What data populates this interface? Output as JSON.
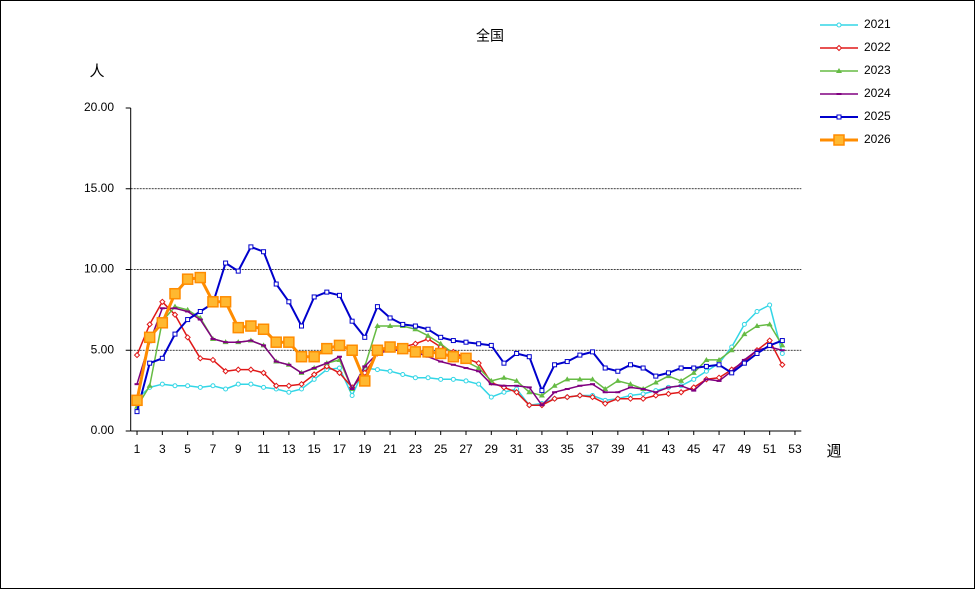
{
  "chart_data": {
    "type": "line",
    "title": "全国",
    "y_label": "人",
    "x_label": "週",
    "x": [
      1,
      2,
      3,
      4,
      5,
      6,
      7,
      8,
      9,
      10,
      11,
      12,
      13,
      14,
      15,
      16,
      17,
      18,
      19,
      20,
      21,
      22,
      23,
      24,
      25,
      26,
      27,
      28,
      29,
      30,
      31,
      32,
      33,
      34,
      35,
      36,
      37,
      38,
      39,
      40,
      41,
      42,
      43,
      44,
      45,
      46,
      47,
      48,
      49,
      50,
      51,
      52
    ],
    "xlim": [
      0.5,
      53.5
    ],
    "xticks": [
      1,
      3,
      5,
      7,
      9,
      11,
      13,
      15,
      17,
      19,
      21,
      23,
      25,
      27,
      29,
      31,
      33,
      35,
      37,
      39,
      41,
      43,
      45,
      47,
      49,
      51,
      53
    ],
    "ylim": [
      0,
      20
    ],
    "yticks": [
      {
        "value": 0,
        "label": "0.00"
      },
      {
        "value": 5,
        "label": "5.00"
      },
      {
        "value": 10,
        "label": "10.00"
      },
      {
        "value": 15,
        "label": "15.00"
      },
      {
        "value": 20,
        "label": "20.00"
      }
    ],
    "grid": true,
    "legend": "right",
    "series": [
      {
        "name": "2021",
        "color": "#33d6e6",
        "marker": "circle",
        "width": 1.5,
        "values": [
          2.0,
          2.7,
          2.9,
          2.8,
          2.8,
          2.7,
          2.8,
          2.6,
          2.9,
          2.9,
          2.7,
          2.6,
          2.4,
          2.6,
          3.2,
          3.8,
          3.9,
          2.2,
          3.9,
          3.8,
          3.7,
          3.5,
          3.3,
          3.3,
          3.2,
          3.2,
          3.1,
          2.9,
          2.1,
          2.4,
          2.6,
          1.6,
          1.7,
          2.0,
          2.1,
          2.2,
          2.2,
          1.9,
          2.0,
          2.2,
          2.3,
          2.5,
          2.7,
          2.8,
          3.2,
          3.7,
          4.2,
          5.2,
          6.6,
          7.4,
          7.8,
          4.8
        ]
      },
      {
        "name": "2022",
        "color": "#e01818",
        "marker": "diamond",
        "width": 1.5,
        "values": [
          4.7,
          6.6,
          8.0,
          7.2,
          5.8,
          4.5,
          4.4,
          3.7,
          3.8,
          3.8,
          3.6,
          2.8,
          2.8,
          2.9,
          3.5,
          4.0,
          3.6,
          2.7,
          3.6,
          4.8,
          5.2,
          5.2,
          5.4,
          5.7,
          5.2,
          4.9,
          4.5,
          4.2,
          3.0,
          2.7,
          2.4,
          1.6,
          1.6,
          2.0,
          2.1,
          2.2,
          2.1,
          1.7,
          2.0,
          2.0,
          2.0,
          2.2,
          2.3,
          2.4,
          2.7,
          3.2,
          3.3,
          3.8,
          4.3,
          5.0,
          5.6,
          4.1
        ]
      },
      {
        "name": "2023",
        "color": "#66bb44",
        "marker": "triangle",
        "width": 1.5,
        "values": [
          1.5,
          2.8,
          6.8,
          7.7,
          7.5,
          7.0,
          5.7,
          5.5,
          5.5,
          5.6,
          5.3,
          4.3,
          4.1,
          3.6,
          3.9,
          4.2,
          4.4,
          2.6,
          4.0,
          6.5,
          6.5,
          6.5,
          6.3,
          5.9,
          5.4,
          4.8,
          4.3,
          3.9,
          3.1,
          3.3,
          3.1,
          2.4,
          2.2,
          2.8,
          3.2,
          3.2,
          3.2,
          2.6,
          3.1,
          2.9,
          2.6,
          3.0,
          3.4,
          3.1,
          3.6,
          4.4,
          4.4,
          5.0,
          6.0,
          6.5,
          6.6,
          5.3
        ]
      },
      {
        "name": "2024",
        "color": "#800080",
        "marker": "dash",
        "width": 1.5,
        "values": [
          2.9,
          5.5,
          7.6,
          7.6,
          7.4,
          6.9,
          5.7,
          5.5,
          5.5,
          5.6,
          5.3,
          4.3,
          4.1,
          3.6,
          3.9,
          4.2,
          4.6,
          2.6,
          4.0,
          4.8,
          5.0,
          5.0,
          4.9,
          4.6,
          4.3,
          4.1,
          3.9,
          3.7,
          2.9,
          2.8,
          2.8,
          2.7,
          1.6,
          2.4,
          2.6,
          2.8,
          2.9,
          2.4,
          2.4,
          2.7,
          2.6,
          2.4,
          2.7,
          2.8,
          2.5,
          3.2,
          3.1,
          3.7,
          4.4,
          5.0,
          5.2,
          5.0
        ]
      },
      {
        "name": "2025",
        "color": "#0000cc",
        "marker": "square",
        "width": 2,
        "values": [
          1.2,
          4.2,
          4.5,
          6.0,
          6.9,
          7.4,
          7.9,
          10.4,
          9.9,
          11.4,
          11.1,
          9.1,
          8.0,
          6.5,
          8.3,
          8.6,
          8.4,
          6.8,
          5.8,
          7.7,
          7.0,
          6.6,
          6.5,
          6.3,
          5.8,
          5.6,
          5.5,
          5.4,
          5.3,
          4.2,
          4.8,
          4.6,
          2.5,
          4.1,
          4.3,
          4.7,
          4.9,
          3.9,
          3.7,
          4.1,
          3.9,
          3.4,
          3.6,
          3.9,
          3.9,
          4.0,
          4.1,
          3.6,
          4.2,
          4.8,
          5.3,
          5.6
        ]
      },
      {
        "name": "2026",
        "color": "#ff8c00",
        "marker": "big-square",
        "width": 3,
        "values": [
          1.9,
          5.8,
          6.7,
          8.5,
          9.4,
          9.5,
          8.0,
          8.0,
          6.4,
          6.5,
          6.3,
          5.5,
          5.5,
          4.6,
          4.6,
          5.1,
          5.3,
          5.0,
          3.1,
          5.0,
          5.2,
          5.1,
          4.9,
          4.9,
          4.8,
          4.6,
          4.5,
          null,
          null,
          null,
          null,
          null,
          null,
          null,
          null,
          null,
          null,
          null,
          null,
          null,
          null,
          null,
          null,
          null,
          null,
          null,
          null,
          null,
          null,
          null,
          null,
          null
        ]
      }
    ]
  }
}
